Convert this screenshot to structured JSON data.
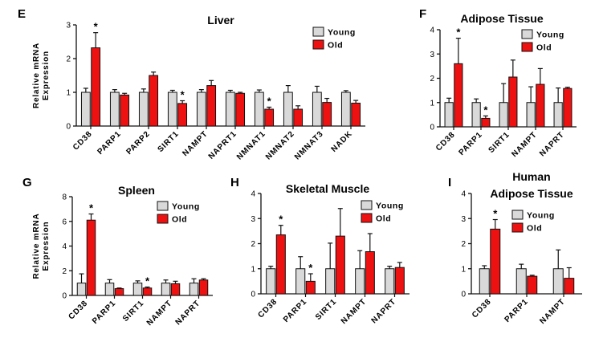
{
  "colors": {
    "young": "#d9d9d9",
    "old": "#ee1111",
    "axis": "#111111"
  },
  "legend": {
    "young": "Young",
    "old": "Old"
  },
  "ylabel": [
    "Relative mRNA",
    "Expression"
  ],
  "chart_data": [
    {
      "type": "bar",
      "panel_letter": "E",
      "title": [
        "Liver"
      ],
      "categories": [
        "CD38",
        "PARP1",
        "PARP2",
        "SIRT1",
        "NAMPT",
        "NAPRT1",
        "NMNAT1",
        "NMNAT2",
        "NMNAT3",
        "NADK"
      ],
      "ylim": [
        0,
        3
      ],
      "yticks": [
        0,
        1,
        2,
        3
      ],
      "legend_position": "top-right",
      "series": [
        {
          "name": "Young",
          "values": [
            1,
            1,
            1,
            1,
            1,
            1,
            1,
            1,
            1,
            1
          ],
          "errors": [
            0.12,
            0.08,
            0.1,
            0.06,
            0.08,
            0.06,
            0.07,
            0.2,
            0.18,
            0.05
          ]
        },
        {
          "name": "Old",
          "values": [
            2.32,
            0.92,
            1.5,
            0.67,
            1.2,
            0.97,
            0.5,
            0.5,
            0.7,
            0.68
          ],
          "errors": [
            0.45,
            0.05,
            0.1,
            0.08,
            0.15,
            0.03,
            0.06,
            0.1,
            0.12,
            0.08
          ]
        }
      ],
      "significance": [
        {
          "index": 0,
          "series": "Old",
          "label": "*"
        },
        {
          "index": 3,
          "series": "Old",
          "label": "*"
        },
        {
          "index": 6,
          "series": "Old",
          "label": "*"
        }
      ]
    },
    {
      "type": "bar",
      "panel_letter": "F",
      "title": [
        "Adipose Tissue"
      ],
      "categories": [
        "CD38",
        "PARP1",
        "SIRT1",
        "NAMPT",
        "NAPRT"
      ],
      "ylim": [
        0,
        4
      ],
      "yticks": [
        0,
        1,
        2,
        3,
        4
      ],
      "legend_position": "top-right",
      "series": [
        {
          "name": "Young",
          "values": [
            1,
            1,
            1,
            1,
            1
          ],
          "errors": [
            0.18,
            0.15,
            0.78,
            0.65,
            0.6
          ]
        },
        {
          "name": "Old",
          "values": [
            2.6,
            0.35,
            2.05,
            1.75,
            1.58
          ],
          "errors": [
            1.05,
            0.1,
            0.7,
            0.65,
            0.05
          ]
        }
      ],
      "significance": [
        {
          "index": 0,
          "series": "Old",
          "label": "*"
        },
        {
          "index": 1,
          "series": "Old",
          "label": "*"
        }
      ]
    },
    {
      "type": "bar",
      "panel_letter": "G",
      "title": [
        "Spleen"
      ],
      "categories": [
        "CD38",
        "PARP1",
        "SIRT1",
        "NAMPT",
        "NAPRT"
      ],
      "ylim": [
        0,
        8
      ],
      "yticks": [
        0,
        2,
        4,
        6,
        8
      ],
      "legend_position": "top-right",
      "series": [
        {
          "name": "Young",
          "values": [
            1,
            1,
            1,
            1,
            1
          ],
          "errors": [
            0.75,
            0.28,
            0.18,
            0.25,
            0.35
          ]
        },
        {
          "name": "Old",
          "values": [
            6.1,
            0.55,
            0.6,
            0.95,
            1.25
          ],
          "errors": [
            0.5,
            0.05,
            0.08,
            0.2,
            0.1
          ]
        }
      ],
      "significance": [
        {
          "index": 0,
          "series": "Old",
          "label": "*"
        },
        {
          "index": 2,
          "series": "Old",
          "label": "*"
        }
      ]
    },
    {
      "type": "bar",
      "panel_letter": "H",
      "title": [
        "Skeletal Muscle"
      ],
      "categories": [
        "CD38",
        "PARP1",
        "SIRT1",
        "NAMPT",
        "NAPRT"
      ],
      "ylim": [
        0,
        4
      ],
      "yticks": [
        0,
        1,
        2,
        3,
        4
      ],
      "legend_position": "top-right",
      "series": [
        {
          "name": "Young",
          "values": [
            1,
            1,
            1,
            1,
            1
          ],
          "errors": [
            0.1,
            0.48,
            1.02,
            0.72,
            0.1
          ]
        },
        {
          "name": "Old",
          "values": [
            2.35,
            0.5,
            2.3,
            1.68,
            1.05
          ],
          "errors": [
            0.38,
            0.3,
            1.1,
            0.72,
            0.2
          ]
        }
      ],
      "significance": [
        {
          "index": 0,
          "series": "Old",
          "label": "*"
        },
        {
          "index": 1,
          "series": "Old",
          "label": "*"
        }
      ]
    },
    {
      "type": "bar",
      "panel_letter": "I",
      "title": [
        "Human",
        "Adipose Tissue"
      ],
      "categories": [
        "CD38",
        "PARP1",
        "NAMPT"
      ],
      "ylim": [
        0,
        4
      ],
      "yticks": [
        0,
        1,
        2,
        3,
        4
      ],
      "legend_position": "top-right",
      "series": [
        {
          "name": "Young",
          "values": [
            1,
            1,
            1
          ],
          "errors": [
            0.12,
            0.18,
            0.75
          ]
        },
        {
          "name": "Old",
          "values": [
            2.58,
            0.7,
            0.62
          ],
          "errors": [
            0.38,
            0.04,
            0.42
          ]
        }
      ],
      "significance": [
        {
          "index": 0,
          "series": "Old",
          "label": "*"
        }
      ]
    }
  ]
}
